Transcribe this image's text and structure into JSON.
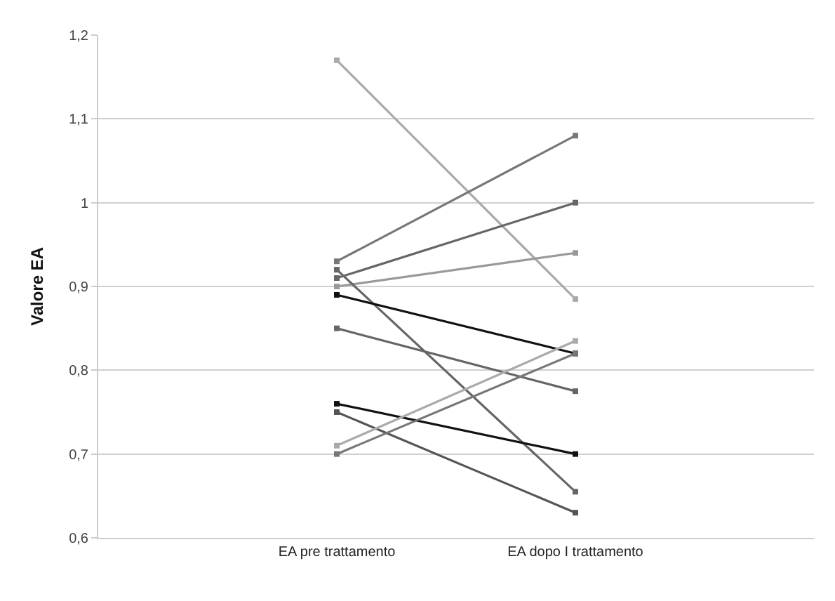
{
  "chart_data": {
    "type": "line",
    "ylabel": "Valore EA",
    "categories": [
      "EA pre trattamento",
      "EA dopo I trattamento"
    ],
    "ylim": [
      0.6,
      1.2
    ],
    "yticks": [
      {
        "value": 0.6,
        "label": "0,6"
      },
      {
        "value": 0.7,
        "label": "0,7"
      },
      {
        "value": 0.8,
        "label": "0,8"
      },
      {
        "value": 0.9,
        "label": "0,9"
      },
      {
        "value": 1,
        "label": "1"
      },
      {
        "value": 1.1,
        "label": "1,1"
      },
      {
        "value": 1.2,
        "label": "1,2"
      }
    ],
    "grid": "y",
    "marker": "square",
    "series": [
      {
        "color": "#aaaaaa",
        "values": [
          1.17,
          0.885
        ]
      },
      {
        "color": "#777777",
        "values": [
          0.93,
          1.08
        ]
      },
      {
        "color": "#666666",
        "values": [
          0.91,
          1.0
        ]
      },
      {
        "color": "#999999",
        "values": [
          0.9,
          0.94
        ]
      },
      {
        "color": "#666666",
        "values": [
          0.92,
          0.655
        ]
      },
      {
        "color": "#111111",
        "values": [
          0.89,
          0.82
        ]
      },
      {
        "color": "#666666",
        "values": [
          0.85,
          0.775
        ]
      },
      {
        "color": "#111111",
        "values": [
          0.76,
          0.7
        ]
      },
      {
        "color": "#555555",
        "values": [
          0.75,
          0.63
        ]
      },
      {
        "color": "#aaaaaa",
        "values": [
          0.71,
          0.835
        ]
      },
      {
        "color": "#777777",
        "values": [
          0.7,
          0.82
        ]
      }
    ]
  }
}
